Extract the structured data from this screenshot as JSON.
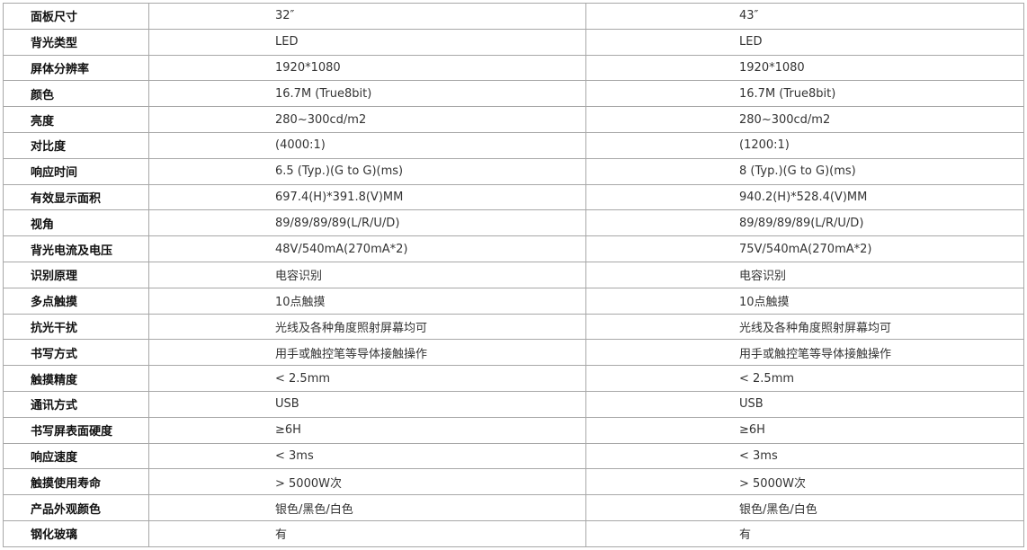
{
  "columns": [
    "32″",
    "43″"
  ],
  "rows": [
    {
      "label": "面板尺寸",
      "a": "32″",
      "b": "43″"
    },
    {
      "label": "背光类型",
      "a": "LED",
      "b": "LED"
    },
    {
      "label": "屏体分辨率",
      "a": "1920*1080",
      "b": "1920*1080"
    },
    {
      "label": "颜色",
      "a": "16.7M (True8bit)",
      "b": "16.7M (True8bit)"
    },
    {
      "label": "亮度",
      "a": "280~300cd/m2",
      "b": "280~300cd/m2"
    },
    {
      "label": "对比度",
      "a": "(4000:1)",
      "b": "(1200:1)"
    },
    {
      "label": "响应时间",
      "a": "6.5 (Typ.)(G to G)(ms)",
      "b": "8 (Typ.)(G to G)(ms)"
    },
    {
      "label": "有效显示面积",
      "a": "697.4(H)*391.8(V)MM",
      "b": "940.2(H)*528.4(V)MM"
    },
    {
      "label": "视角",
      "a": "89/89/89/89(L/R/U/D)",
      "b": "89/89/89/89(L/R/U/D)"
    },
    {
      "label": "背光电流及电压",
      "a": "48V/540mA(270mA*2)",
      "b": "75V/540mA(270mA*2)"
    },
    {
      "label": "识别原理",
      "a": "电容识别",
      "b": "电容识别"
    },
    {
      "label": "多点触摸",
      "a": "10点触摸",
      "b": "10点触摸"
    },
    {
      "label": "抗光干扰",
      "a": "光线及各种角度照射屏幕均可",
      "b": "光线及各种角度照射屏幕均可"
    },
    {
      "label": "书写方式",
      "a": "用手或触控笔等导体接触操作",
      "b": "用手或触控笔等导体接触操作"
    },
    {
      "label": "触摸精度",
      "a": "< 2.5mm",
      "b": "< 2.5mm"
    },
    {
      "label": "通讯方式",
      "a": "USB",
      "b": "USB"
    },
    {
      "label": "书写屏表面硬度",
      "a": "≥6H",
      "b": "≥6H"
    },
    {
      "label": "响应速度",
      "a": "< 3ms",
      "b": "< 3ms"
    },
    {
      "label": "触摸使用寿命",
      "a": "> 5000W次",
      "b": "> 5000W次"
    },
    {
      "label": "产品外观颜色",
      "a": "银色/黑色/白色",
      "b": "银色/黑色/白色"
    },
    {
      "label": "钢化玻璃",
      "a": "有",
      "b": "有"
    }
  ]
}
